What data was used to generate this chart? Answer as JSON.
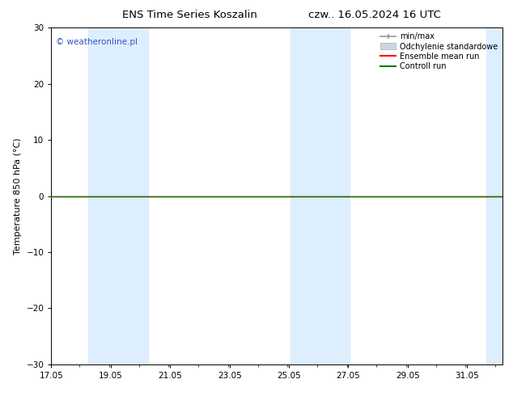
{
  "title_left": "ENS Time Series Koszalin",
  "title_right": "czw.. 16.05.2024 16 UTC",
  "ylabel": "Temperature 850 hPa (°C)",
  "watermark": "© weatheronline.pl",
  "ylim": [
    -30,
    30
  ],
  "yticks": [
    -30,
    -20,
    -10,
    0,
    10,
    20,
    30
  ],
  "xlim_start": 17.05,
  "xlim_end": 32.25,
  "xtick_labels": [
    "17.05",
    "19.05",
    "21.05",
    "23.05",
    "25.05",
    "27.05",
    "29.05",
    "31.05"
  ],
  "xtick_positions": [
    17.05,
    19.05,
    21.05,
    23.05,
    25.05,
    27.05,
    29.05,
    31.05
  ],
  "shaded_bands": [
    {
      "x_start": 18.3,
      "x_end": 20.3
    },
    {
      "x_start": 25.1,
      "x_end": 27.1
    },
    {
      "x_start": 31.7,
      "x_end": 32.25
    }
  ],
  "zero_line_y": 0.0,
  "control_run_color": "#007700",
  "ensemble_mean_color": "#ff0000",
  "min_max_color": "#999999",
  "std_fill_color": "#c8d8e8",
  "band_color": "#ddeeff",
  "background_color": "#ffffff",
  "title_fontsize": 9.5,
  "axis_label_fontsize": 8,
  "tick_fontsize": 7.5,
  "watermark_color": "#3355bb",
  "legend_fontsize": 7,
  "legend_labels": [
    "min/max",
    "Odchylenie standardowe",
    "Ensemble mean run",
    "Controll run"
  ],
  "legend_colors": [
    "#999999",
    "#c8d8e8",
    "#ff0000",
    "#007700"
  ]
}
